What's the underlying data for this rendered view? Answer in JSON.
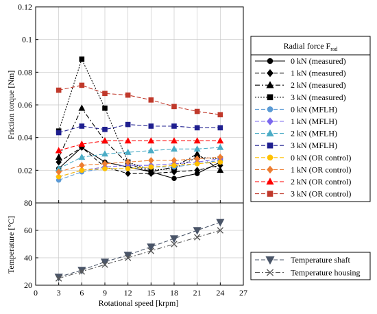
{
  "chart_data": [
    {
      "type": "line",
      "ylabel": "Friction torque [Nm]",
      "xlim": [
        0,
        27
      ],
      "ylim": [
        0,
        0.12
      ],
      "x_ticks": [
        0,
        3,
        6,
        9,
        12,
        15,
        18,
        21,
        24,
        27
      ],
      "y_ticks": [
        0,
        0.02,
        0.04,
        0.06,
        0.08,
        0.1,
        0.12
      ],
      "y_tick_labels": [
        "0",
        "0.02",
        "0.04",
        "0.06",
        "0.08",
        "0.1",
        "0.12"
      ],
      "grid": true,
      "legend": {
        "title": "Radial force F",
        "title_subscript": "rad",
        "placement": "right"
      },
      "x": [
        3,
        6,
        9,
        12,
        15,
        18,
        21,
        24
      ],
      "series": [
        {
          "name": "0 kN (measured)",
          "color": "#000000",
          "dash": "solid",
          "marker": "circle",
          "values": [
            0.021,
            0.034,
            0.025,
            0.022,
            0.019,
            0.015,
            0.018,
            0.025
          ]
        },
        {
          "name": "1 kN (measured)",
          "color": "#000000",
          "dash": "dash",
          "marker": "diamond",
          "values": [
            0.025,
            0.034,
            0.022,
            0.018,
            0.018,
            0.019,
            0.02,
            0.023
          ]
        },
        {
          "name": "2 kN (measured)",
          "color": "#000000",
          "dash": "dashdot",
          "marker": "triangle-up",
          "values": [
            0.028,
            0.058,
            0.038,
            0.024,
            0.019,
            0.022,
            0.03,
            0.02
          ]
        },
        {
          "name": "3 kN (measured)",
          "color": "#000000",
          "dash": "dot",
          "marker": "square",
          "values": [
            0.044,
            0.088,
            0.058,
            0.025,
            0.02,
            0.021,
            0.028,
            0.027
          ]
        },
        {
          "name": "0 kN (MFLH)",
          "color": "#5b9bd5",
          "dash": "dash",
          "marker": "circle",
          "values": [
            0.014,
            0.019,
            0.021,
            0.021,
            0.022,
            0.022,
            0.024,
            0.026
          ]
        },
        {
          "name": "1 kN (MFLH)",
          "color": "#7b68ee",
          "dash": "dash",
          "marker": "diamond",
          "values": [
            0.016,
            0.02,
            0.022,
            0.023,
            0.023,
            0.024,
            0.025,
            0.027
          ]
        },
        {
          "name": "2 kN (MFLH)",
          "color": "#4bacc6",
          "dash": "dash",
          "marker": "triangle-up",
          "values": [
            0.021,
            0.028,
            0.03,
            0.031,
            0.032,
            0.033,
            0.033,
            0.034
          ]
        },
        {
          "name": "3 kN (MFLH)",
          "color": "#1f1f8f",
          "dash": "dash",
          "marker": "square",
          "values": [
            0.043,
            0.047,
            0.045,
            0.048,
            0.047,
            0.047,
            0.046,
            0.046
          ]
        },
        {
          "name": "0 kN (OR control)",
          "color": "#ffc000",
          "dash": "dash",
          "marker": "circle",
          "values": [
            0.016,
            0.02,
            0.021,
            0.021,
            0.022,
            0.023,
            0.024,
            0.025
          ]
        },
        {
          "name": "1 kN (OR control)",
          "color": "#ed7d31",
          "dash": "dash",
          "marker": "diamond",
          "values": [
            0.019,
            0.023,
            0.024,
            0.025,
            0.026,
            0.026,
            0.027,
            0.028
          ]
        },
        {
          "name": "2 kN (OR control)",
          "color": "#ff0000",
          "dash": "dash",
          "marker": "triangle-up",
          "values": [
            0.032,
            0.036,
            0.038,
            0.038,
            0.038,
            0.038,
            0.038,
            0.038
          ]
        },
        {
          "name": "3 kN (OR control)",
          "color": "#c0392b",
          "dash": "dash",
          "marker": "square",
          "values": [
            0.069,
            0.072,
            0.067,
            0.066,
            0.063,
            0.059,
            0.056,
            0.054
          ]
        }
      ]
    },
    {
      "type": "line",
      "xlabel": "Rotational speed [krpm]",
      "ylabel": "Temperature [°C]",
      "xlim": [
        0,
        27
      ],
      "ylim": [
        20,
        80
      ],
      "x_ticks": [
        0,
        3,
        6,
        9,
        12,
        15,
        18,
        21,
        24,
        27
      ],
      "y_ticks": [
        20,
        40,
        60,
        80
      ],
      "grid": true,
      "legend": {
        "placement": "right"
      },
      "x": [
        3,
        6,
        9,
        12,
        15,
        18,
        21,
        24
      ],
      "series": [
        {
          "name": "Temperature shaft",
          "color": "#4a5568",
          "dash": "dash",
          "marker": "triangle-down",
          "values": [
            26,
            31,
            37,
            42,
            48,
            54,
            60,
            66
          ]
        },
        {
          "name": "Temperature housing",
          "color": "#595959",
          "dash": "dashdot",
          "marker": "x",
          "values": [
            25,
            30,
            35,
            40,
            45,
            50,
            55,
            60
          ]
        }
      ]
    }
  ]
}
